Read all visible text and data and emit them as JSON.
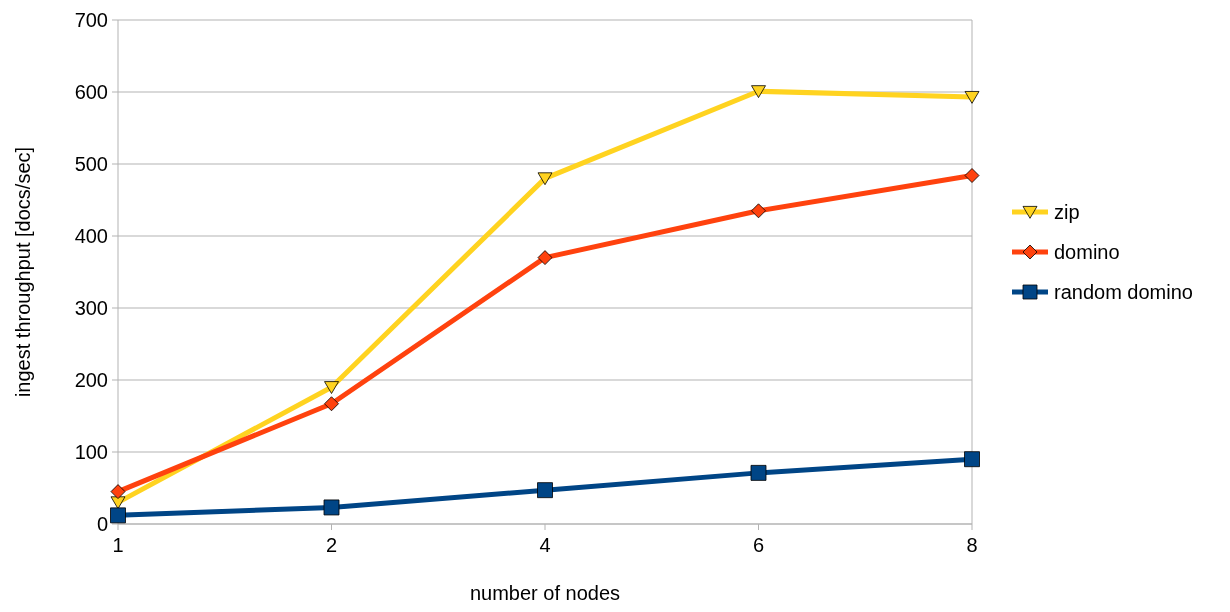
{
  "chart_data": {
    "type": "line",
    "xlabel": "number of nodes",
    "ylabel": "ingest throughput [docs/sec]",
    "categories": [
      "1",
      "2",
      "4",
      "6",
      "8"
    ],
    "ylim": [
      0,
      700
    ],
    "yticks": [
      0,
      100,
      200,
      300,
      400,
      500,
      600,
      700
    ],
    "grid": "y",
    "legend": "right",
    "series": [
      {
        "name": "zip",
        "color": "#ffd320",
        "marker": "triangle",
        "values": [
          30,
          190,
          480,
          601,
          593
        ]
      },
      {
        "name": "domino",
        "color": "#ff420e",
        "marker": "diamond",
        "values": [
          45,
          167,
          370,
          435,
          484
        ]
      },
      {
        "name": "random domino",
        "color": "#004586",
        "marker": "square",
        "values": [
          12,
          23,
          47,
          71,
          90
        ]
      }
    ]
  }
}
